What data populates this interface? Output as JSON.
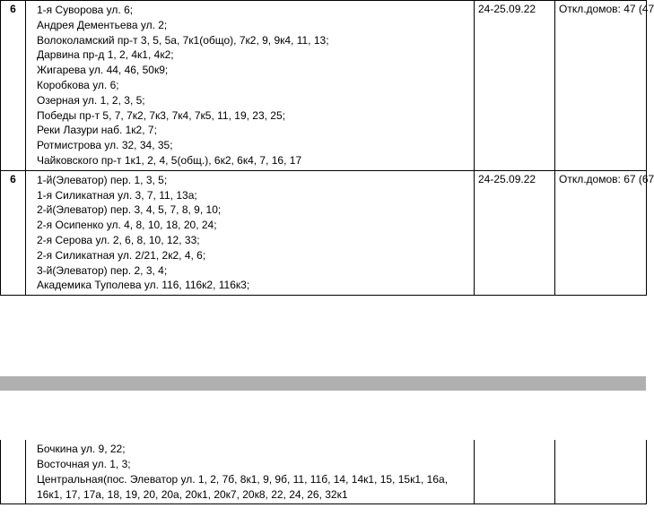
{
  "rows": [
    {
      "num": "6",
      "dates": "24-25.09.22",
      "info": "Откл.домов: 47 (47",
      "addresses": [
        "1-я Суворова ул. 6;",
        "Андрея Дементьева ул. 2;",
        "Волоколамский пр-т 3, 5, 5а, 7к1(общо), 7к2, 9, 9к4, 11, 13;",
        "Дарвина пр-д 1, 2, 4к1, 4к2;",
        "Жигарева ул. 44, 46, 50к9;",
        "Коробкова ул. 6;",
        "Озерная ул. 1, 2, 3, 5;",
        "Победы пр-т 5, 7, 7к2, 7к3, 7к4, 7к5, 11, 19, 23, 25;",
        "Реки Лазури наб. 1к2, 7;",
        "Ротмистрова ул. 32, 34, 35;",
        "Чайковского пр-т 1к1, 2, 4, 5(общ.), 6к2, 6к4, 7, 16, 17"
      ]
    },
    {
      "num": "6",
      "dates": "24-25.09.22",
      "info": "Откл.домов: 67 (67",
      "addresses": [
        "1-й(Элеватор) пер. 1, 3, 5;",
        "1-я Силикатная ул. 3, 7, 11, 13а;",
        "2-й(Элеватор) пер. 3, 4, 5, 7, 8, 9, 10;",
        "2-я Осипенко ул. 4, 8, 10, 18, 20, 24;",
        "2-я Серова ул. 2, 6, 8, 10, 12, 33;",
        "2-я Силикатная ул. 2/21, 2к2, 4, 6;",
        "3-й(Элеватор) пер. 2, 3, 4;",
        "Академика Туполева ул. 116, 116к2, 116к3;"
      ]
    }
  ],
  "bottomRow": {
    "addresses": [
      "Бочкина ул. 9, 22;",
      "Восточная ул. 1, 3;",
      "Центральная(пос. Элеватор ул. 1, 2, 7б, 8к1, 9, 9б, 11, 11б, 14, 14к1, 15, 15к1, 16а, 16к1, 17, 17а, 18, 19, 20, 20а, 20к1, 20к7, 20к8, 22, 24, 26, 32к1"
    ]
  }
}
